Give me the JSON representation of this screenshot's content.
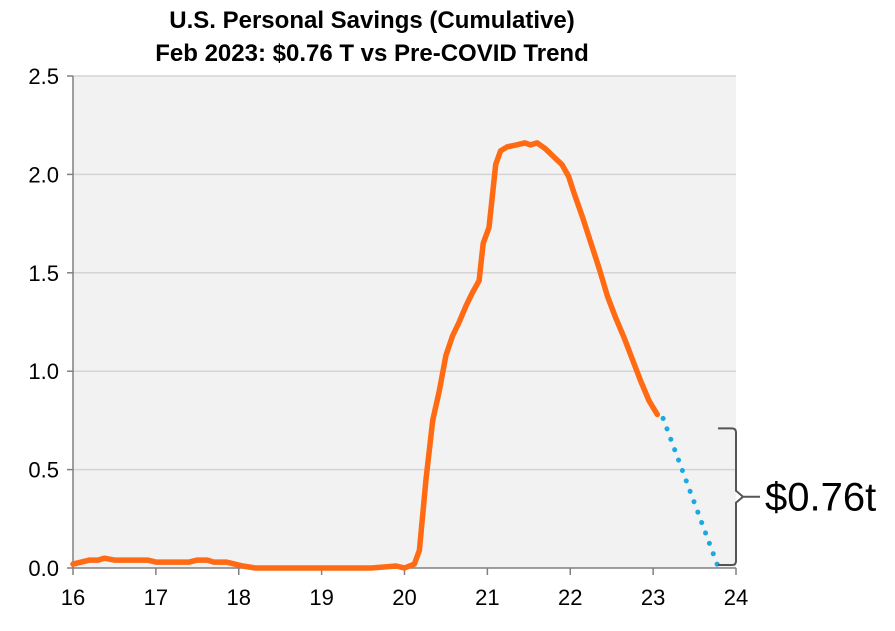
{
  "chart_data": {
    "type": "line",
    "title": "U.S. Personal Savings (Cumulative)",
    "subtitle": "Feb 2023: $0.76 T vs Pre-COVID Trend",
    "xlabel": "",
    "ylabel": "",
    "xlim": [
      16,
      24
    ],
    "ylim": [
      0,
      2.5
    ],
    "x_ticks": [
      "16",
      "17",
      "18",
      "19",
      "20",
      "21",
      "22",
      "23",
      "24"
    ],
    "y_ticks": [
      "0.0",
      "0.5",
      "1.0",
      "1.5",
      "2.0",
      "2.5"
    ],
    "grid": true,
    "legend": "none",
    "series": [
      {
        "style": "solid",
        "color": "#FF6A13",
        "points": [
          [
            16.0,
            0.02
          ],
          [
            16.1,
            0.03
          ],
          [
            16.2,
            0.04
          ],
          [
            16.3,
            0.04
          ],
          [
            16.38,
            0.05
          ],
          [
            16.5,
            0.04
          ],
          [
            16.7,
            0.04
          ],
          [
            16.9,
            0.04
          ],
          [
            17.0,
            0.03
          ],
          [
            17.2,
            0.03
          ],
          [
            17.4,
            0.03
          ],
          [
            17.5,
            0.04
          ],
          [
            17.62,
            0.04
          ],
          [
            17.7,
            0.03
          ],
          [
            17.85,
            0.03
          ],
          [
            17.95,
            0.02
          ],
          [
            18.05,
            0.01
          ],
          [
            18.2,
            0.0
          ],
          [
            18.5,
            0.0
          ],
          [
            19.0,
            0.0
          ],
          [
            19.3,
            0.0
          ],
          [
            19.6,
            0.0
          ],
          [
            19.9,
            0.01
          ],
          [
            20.0,
            0.0
          ],
          [
            20.12,
            0.02
          ],
          [
            20.18,
            0.09
          ],
          [
            20.26,
            0.45
          ],
          [
            20.34,
            0.75
          ],
          [
            20.42,
            0.9
          ],
          [
            20.5,
            1.08
          ],
          [
            20.58,
            1.18
          ],
          [
            20.66,
            1.25
          ],
          [
            20.74,
            1.33
          ],
          [
            20.82,
            1.4
          ],
          [
            20.9,
            1.46
          ],
          [
            20.95,
            1.65
          ],
          [
            21.02,
            1.73
          ],
          [
            21.1,
            2.05
          ],
          [
            21.16,
            2.12
          ],
          [
            21.24,
            2.14
          ],
          [
            21.35,
            2.15
          ],
          [
            21.45,
            2.16
          ],
          [
            21.52,
            2.15
          ],
          [
            21.6,
            2.16
          ],
          [
            21.7,
            2.13
          ],
          [
            21.8,
            2.09
          ],
          [
            21.9,
            2.05
          ],
          [
            21.98,
            1.99
          ],
          [
            22.05,
            1.9
          ],
          [
            22.15,
            1.78
          ],
          [
            22.25,
            1.65
          ],
          [
            22.35,
            1.52
          ],
          [
            22.45,
            1.38
          ],
          [
            22.55,
            1.27
          ],
          [
            22.65,
            1.17
          ],
          [
            22.75,
            1.06
          ],
          [
            22.85,
            0.95
          ],
          [
            22.95,
            0.85
          ],
          [
            23.05,
            0.78
          ]
        ]
      },
      {
        "style": "dotted",
        "color": "#1BA9E1",
        "points": [
          [
            23.12,
            0.76
          ],
          [
            23.78,
            0.01
          ]
        ]
      }
    ],
    "annotation": {
      "label": "$0.76t",
      "from": 0.0,
      "to": 0.76
    }
  }
}
